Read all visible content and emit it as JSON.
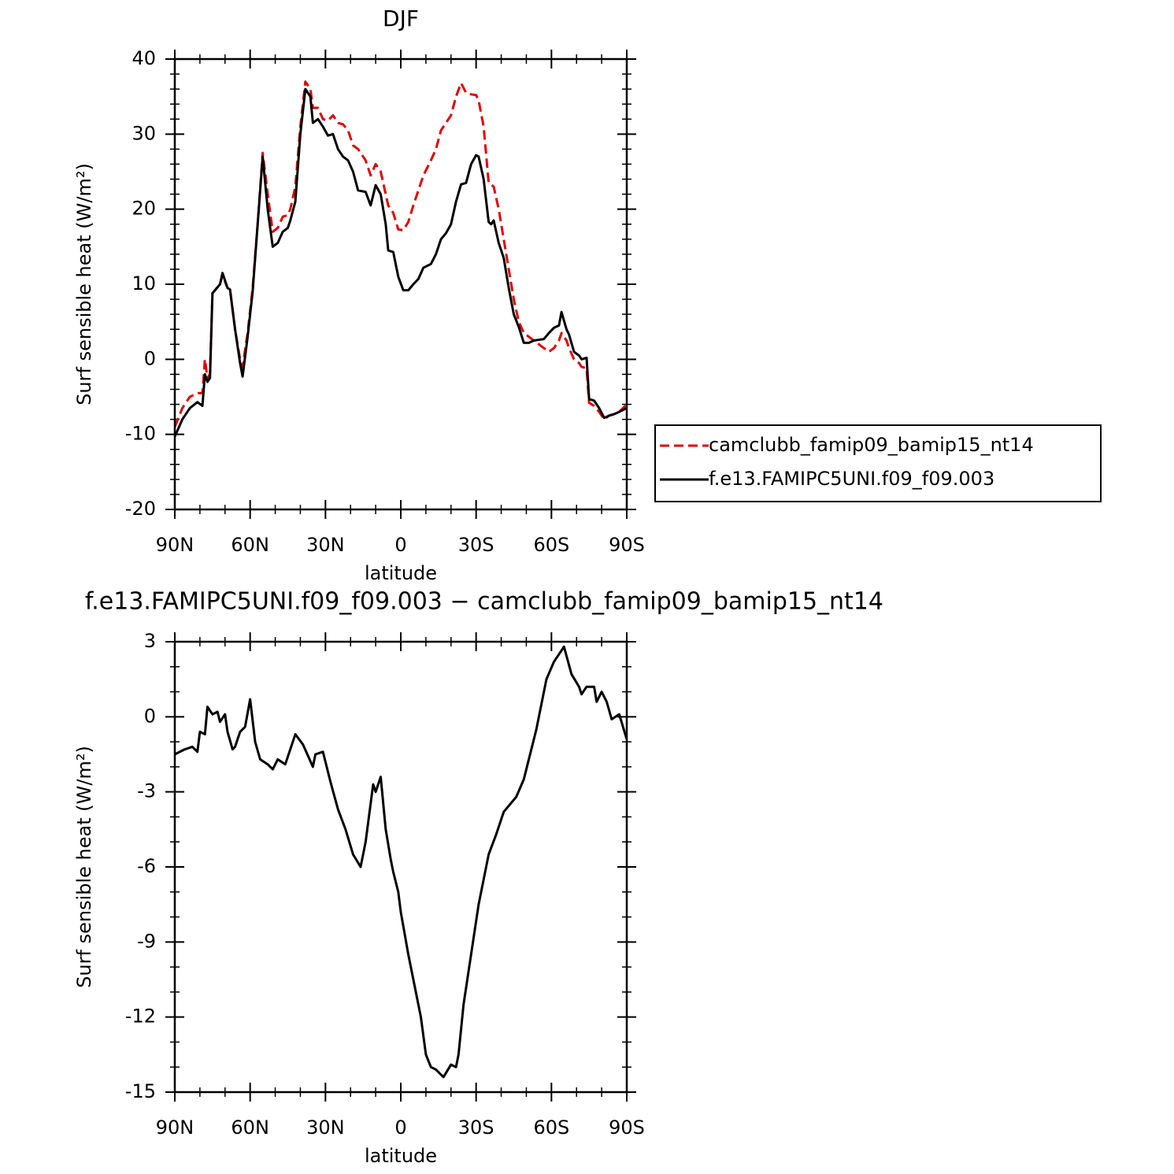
{
  "chart_data": [
    {
      "type": "line",
      "title": "DJF",
      "xlabel": "latitude",
      "ylabel": "Surf sensible heat (W/m²)",
      "xlim": [
        90,
        -90
      ],
      "ylim": [
        -20,
        40
      ],
      "xticks": [
        {
          "value": 90,
          "label": "90N"
        },
        {
          "value": 60,
          "label": "60N"
        },
        {
          "value": 30,
          "label": "30N"
        },
        0,
        {
          "value": -30,
          "label": "30S"
        },
        {
          "value": -60,
          "label": "60S"
        },
        {
          "value": -90,
          "label": "90S"
        }
      ],
      "yticks": [
        -20,
        -10,
        0,
        10,
        20,
        30,
        40
      ],
      "legend": "right",
      "x": [
        90,
        87,
        84,
        81,
        79,
        78,
        77,
        76,
        75,
        72,
        71,
        69,
        68,
        66,
        64,
        63,
        61,
        59,
        57,
        55,
        53,
        51,
        49,
        47,
        45,
        44,
        42,
        40,
        38,
        36,
        35,
        33,
        31,
        29,
        27,
        25,
        23,
        21,
        19,
        17,
        14,
        12,
        10,
        8,
        6,
        5,
        3,
        1,
        -1,
        -3,
        -5,
        -7,
        -9,
        -12,
        -14,
        -16,
        -18,
        -20,
        -22,
        -24,
        -26,
        -28,
        -30,
        -31,
        -33,
        -35,
        -36,
        -37,
        -39,
        -41,
        -43,
        -45,
        -47,
        -49,
        -51,
        -53,
        -55,
        -57,
        -59,
        -61,
        -63,
        -64,
        -66,
        -67,
        -69,
        -71,
        -72,
        -74,
        -75,
        -77,
        -79,
        -81,
        -83,
        -85,
        -87,
        -90
      ],
      "series": [
        {
          "name": "camclubb_famip09_bamip15_nt14",
          "color": "#e00000",
          "line_style": "dashed",
          "values": [
            -9,
            -6.5,
            -5,
            -4.5,
            -4.5,
            0,
            -2.5,
            -2,
            8.8,
            10,
            11.2,
            9.5,
            9.3,
            4,
            0,
            -1,
            3.5,
            9.5,
            18,
            27.5,
            22,
            17,
            17.5,
            19,
            19.2,
            20,
            23,
            31,
            37,
            36,
            33.5,
            33.5,
            32,
            31.8,
            32.5,
            31.5,
            31.3,
            30.5,
            28.5,
            28,
            26.5,
            24.5,
            26,
            25,
            22,
            20.5,
            19.5,
            17.3,
            17.2,
            18.3,
            20.5,
            22.5,
            24.5,
            26.5,
            28,
            30.5,
            31.5,
            32.5,
            35,
            36.8,
            35.5,
            35.3,
            35.2,
            34.5,
            31,
            23.5,
            23.3,
            23,
            20,
            16,
            12,
            8,
            5,
            3.5,
            3,
            2.5,
            2,
            1.5,
            1,
            1.5,
            2.5,
            3.5,
            2.5,
            1.5,
            0,
            -0.5,
            -1,
            -1.2,
            -5.8,
            -6.2,
            -7,
            -8,
            -7.5,
            -7.3,
            -7,
            -6
          ]
        },
        {
          "name": "f.e13.FAMIPC5UNI.f09_f09.003",
          "color": "#000000",
          "line_style": "solid",
          "values": [
            -10.3,
            -8,
            -6.5,
            -5.7,
            -6.2,
            -2,
            -3,
            -2.5,
            8.8,
            10,
            11.5,
            9.5,
            9.3,
            4,
            -0.5,
            -2.3,
            3,
            9,
            18,
            27,
            20,
            15,
            15.5,
            17,
            17.5,
            18.5,
            21,
            30,
            36,
            35,
            31.5,
            32,
            31,
            29.8,
            30,
            28,
            27,
            26.5,
            25,
            22.5,
            22.3,
            20.5,
            23.2,
            22,
            18,
            14.5,
            14.3,
            11,
            9.2,
            9.2,
            10,
            10.7,
            12.2,
            12.7,
            14,
            16,
            16.8,
            18,
            21,
            23.3,
            23.5,
            26,
            27.2,
            27,
            24,
            18.3,
            18,
            18.5,
            15.5,
            13.5,
            9.5,
            6,
            4.3,
            2.2,
            2.2,
            2.5,
            2.6,
            2.7,
            3.5,
            4.2,
            4.5,
            6.3,
            4,
            3.3,
            1,
            0.5,
            0,
            0.2,
            -5.3,
            -5.5,
            -6.5,
            -7.8,
            -7.5,
            -7.3,
            -7,
            -6.5
          ]
        }
      ]
    },
    {
      "type": "line",
      "title": "f.e13.FAMIPC5UNI.f09_f09.003 − camclubb_famip09_bamip15_nt14",
      "xlabel": "latitude",
      "ylabel": "Surf sensible heat (W/m²)",
      "xlim": [
        90,
        -90
      ],
      "ylim": [
        -15,
        3
      ],
      "xticks": [
        {
          "value": 90,
          "label": "90N"
        },
        {
          "value": 60,
          "label": "60N"
        },
        {
          "value": 30,
          "label": "30N"
        },
        0,
        {
          "value": -30,
          "label": "30S"
        },
        {
          "value": -60,
          "label": "60S"
        },
        {
          "value": -90,
          "label": "90S"
        }
      ],
      "yticks": [
        -15,
        -12,
        -9,
        -6,
        -3,
        0,
        3
      ],
      "x": [
        90,
        86,
        83,
        81,
        80,
        78,
        77,
        75,
        73,
        72,
        70,
        69,
        67,
        66,
        64,
        62,
        60,
        58,
        56,
        53,
        51,
        49,
        46,
        42,
        39,
        35,
        34,
        31,
        28,
        25,
        22,
        19,
        16,
        14,
        11,
        10,
        8,
        6,
        4,
        3,
        1,
        0,
        -3,
        -7,
        -8,
        -10,
        -12,
        -14,
        -17,
        -20,
        -22,
        -23,
        -25,
        -28,
        -31,
        -35,
        -38,
        -41,
        -46,
        -49,
        -54,
        -58,
        -61,
        -65,
        -68,
        -71,
        -72,
        -74,
        -77,
        -78,
        -80,
        -82,
        -84,
        -87,
        -90
      ],
      "series": [
        {
          "color": "#000000",
          "line_style": "solid",
          "values": [
            -1.5,
            -1.3,
            -1.2,
            -1.4,
            -0.6,
            -0.7,
            0.4,
            0.1,
            0.2,
            -0.2,
            0.1,
            -0.6,
            -1.3,
            -1.2,
            -0.6,
            -0.4,
            0.7,
            -1.0,
            -1.7,
            -1.9,
            -2.1,
            -1.7,
            -1.9,
            -0.7,
            -1.1,
            -2.0,
            -1.5,
            -1.4,
            -2.6,
            -3.7,
            -4.5,
            -5.5,
            -6.0,
            -5,
            -2.7,
            -3,
            -2.4,
            -4.5,
            -5.7,
            -6.2,
            -7,
            -7.8,
            -9.5,
            -11.5,
            -12,
            -13.5,
            -14,
            -14.1,
            -14.4,
            -13.9,
            -14,
            -13.5,
            -11.5,
            -9.5,
            -7.5,
            -5.5,
            -4.7,
            -3.8,
            -3.2,
            -2.5,
            -0.5,
            1.5,
            2.2,
            2.8,
            1.7,
            1.2,
            0.9,
            1.2,
            1.2,
            0.6,
            1.0,
            0.6,
            -0.1,
            0.1,
            -0.9
          ]
        }
      ]
    }
  ]
}
